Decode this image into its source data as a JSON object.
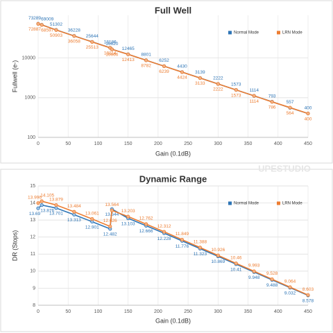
{
  "watermark": "UPESTUDIO",
  "chart_data": [
    {
      "type": "line",
      "title": "Full Well",
      "xlabel": "Gain (0.1dB)",
      "ylabel": "Fullwell (e-)",
      "log_y": true,
      "grid": true,
      "legend": "top-right",
      "x": [
        0,
        6,
        30,
        60,
        90,
        120,
        123,
        150,
        180,
        210,
        240,
        270,
        300,
        330,
        360,
        390,
        420,
        450
      ],
      "series": [
        {
          "name": "Normal Mode",
          "color": "#2e75b6",
          "values": [
            73289,
            69009,
            51302,
            36228,
            25644,
            18186,
            16620,
            12465,
            8801,
            6252,
            4430,
            3139,
            2222,
            1573,
            1114,
            793,
            557,
            400
          ]
        },
        {
          "name": "LRN Mode",
          "color": "#ed7d31",
          "values": [
            72887,
            68597,
            50903,
            36058,
            25513,
            18114,
            16666,
            12413,
            8782,
            6239,
            4424,
            3133,
            2222,
            1573,
            1114,
            786,
            564,
            400
          ]
        }
      ],
      "xlim": [
        0,
        450
      ],
      "xticks": [
        0,
        50,
        100,
        150,
        200,
        250,
        300,
        350,
        400,
        450
      ],
      "ylim": [
        100,
        120000
      ],
      "yticks": [
        100,
        1000,
        10000
      ]
    },
    {
      "type": "line",
      "title": "Dynamic Range",
      "xlabel": "Gain (0.1dB)",
      "ylabel": "DR (Stops)",
      "log_y": false,
      "grid": true,
      "legend": "top-right",
      "x": [
        0,
        6,
        30,
        60,
        90,
        120,
        123,
        150,
        180,
        210,
        240,
        270,
        300,
        330,
        360,
        390,
        420,
        450
      ],
      "series": [
        {
          "name": "Normal Mode",
          "color": "#2e75b6",
          "values": [
            13.69,
            13.876,
            13.701,
            13.313,
            12.901,
            12.482,
            13.644,
            13.103,
            12.666,
            12.228,
            11.776,
            11.323,
            10.869,
            10.41,
            9.948,
            9.488,
            9.032,
            8.578
          ]
        },
        {
          "name": "LRN Mode",
          "color": "#ed7d31",
          "values": [
            13.996,
            14.105,
            13.879,
            13.484,
            13.061,
            12.626,
            13.564,
            13.203,
            12.762,
            12.312,
            11.849,
            11.388,
            10.926,
            10.46,
            9.993,
            9.528,
            9.064,
            8.603
          ]
        }
      ],
      "xlim": [
        0,
        450
      ],
      "xticks": [
        0,
        50,
        100,
        150,
        200,
        250,
        300,
        350,
        400,
        450
      ],
      "ylim": [
        8,
        15
      ],
      "yticks": [
        8,
        9,
        10,
        11,
        12,
        13,
        14,
        15
      ]
    }
  ]
}
